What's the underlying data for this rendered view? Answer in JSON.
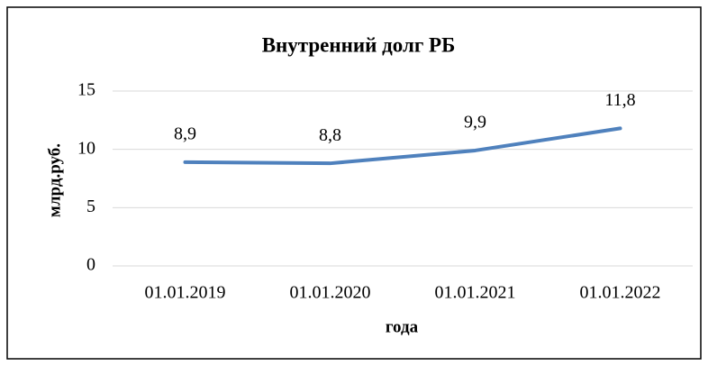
{
  "chart_data": {
    "type": "line",
    "title": "Внутренний долг РБ",
    "x_label": "года",
    "y_label": "млрд.руб.",
    "categories": [
      "01.01.2019",
      "01.01.2020",
      "01.01.2021",
      "01.01.2022"
    ],
    "series": [
      {
        "name": "Внутренний долг РБ",
        "color": "#4f81bd",
        "values": [
          8.9,
          8.8,
          9.9,
          11.8
        ],
        "value_labels": [
          "8,9",
          "8,8",
          "9,9",
          "11,8"
        ]
      }
    ],
    "ylim": [
      0,
      15
    ],
    "yticks": [
      0,
      5,
      10,
      15
    ],
    "grid": true
  }
}
